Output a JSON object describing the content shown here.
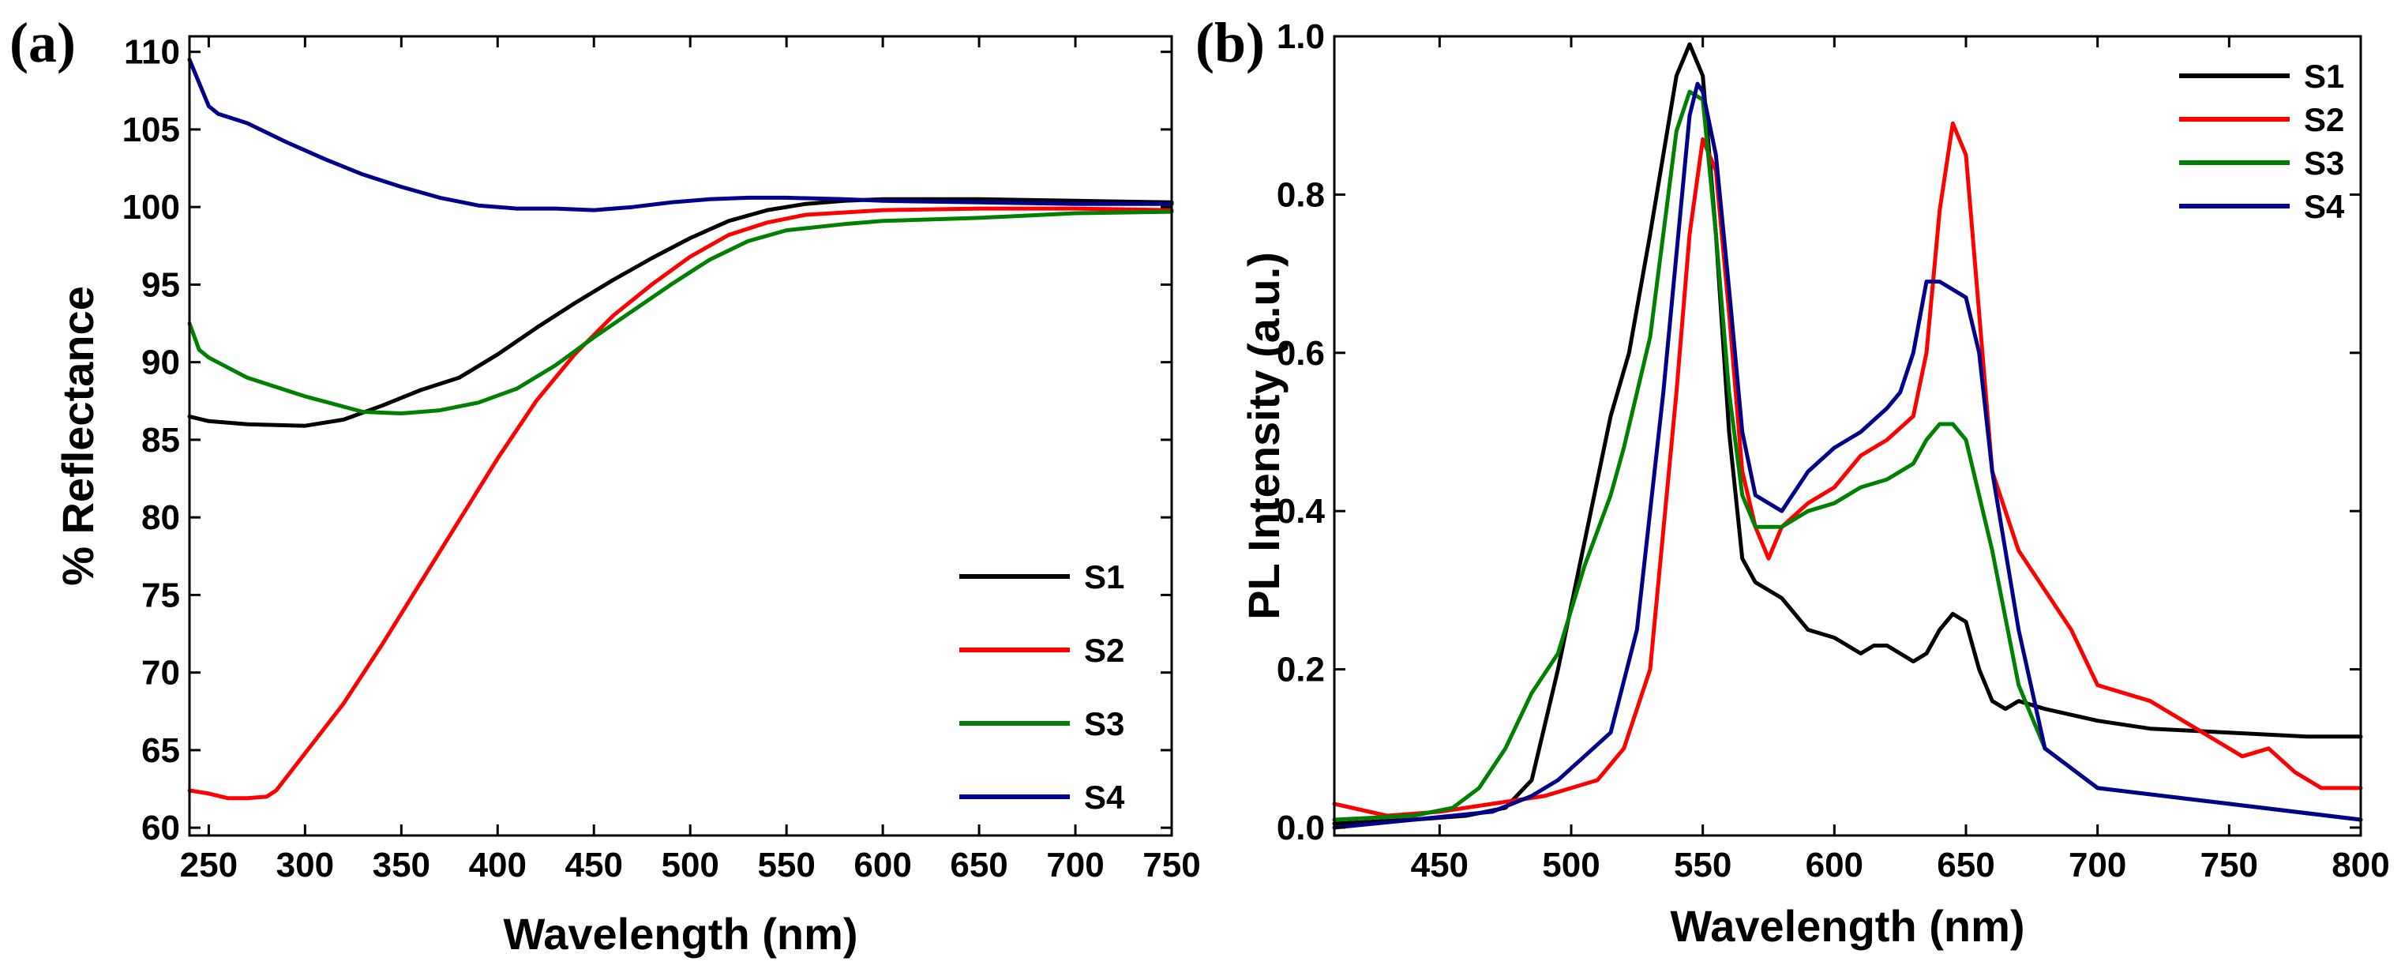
{
  "chart_data": [
    {
      "panel": "(a)",
      "type": "line",
      "xlabel": "Wavelength (nm)",
      "ylabel": "% Reflectance",
      "xlim": [
        240,
        750
      ],
      "ylim": [
        59.5,
        111
      ],
      "xticks": [
        250,
        300,
        350,
        400,
        450,
        500,
        550,
        600,
        650,
        700,
        750
      ],
      "yticks": [
        60,
        65,
        70,
        75,
        80,
        85,
        90,
        95,
        100,
        105,
        110
      ],
      "legend_position": "bottom-right",
      "series": [
        {
          "name": "S1",
          "color": "#000000",
          "x": [
            240,
            250,
            270,
            300,
            320,
            340,
            360,
            380,
            400,
            420,
            440,
            460,
            480,
            500,
            520,
            540,
            560,
            580,
            600,
            650,
            700,
            750
          ],
          "y": [
            86.5,
            86.2,
            86.0,
            85.9,
            86.3,
            87.2,
            88.2,
            89.0,
            90.5,
            92.2,
            93.8,
            95.3,
            96.7,
            98.0,
            99.1,
            99.8,
            100.2,
            100.4,
            100.5,
            100.5,
            100.4,
            100.3
          ]
        },
        {
          "name": "S2",
          "color": "#ff0000",
          "x": [
            240,
            250,
            260,
            270,
            280,
            285,
            300,
            320,
            340,
            360,
            380,
            400,
            420,
            440,
            460,
            480,
            500,
            520,
            540,
            560,
            600,
            650,
            700,
            750
          ],
          "y": [
            62.4,
            62.2,
            61.9,
            61.9,
            62.0,
            62.4,
            64.8,
            68.0,
            71.8,
            75.8,
            79.8,
            83.8,
            87.5,
            90.5,
            93.0,
            95.0,
            96.8,
            98.2,
            99.0,
            99.5,
            99.8,
            99.9,
            99.9,
            99.8
          ]
        },
        {
          "name": "S3",
          "color": "#008000",
          "x": [
            240,
            245,
            250,
            270,
            300,
            330,
            350,
            370,
            390,
            410,
            430,
            450,
            470,
            490,
            510,
            530,
            550,
            580,
            600,
            650,
            700,
            750
          ],
          "y": [
            92.5,
            90.8,
            90.3,
            89.0,
            87.8,
            86.8,
            86.7,
            86.9,
            87.4,
            88.3,
            89.8,
            91.6,
            93.3,
            95.0,
            96.6,
            97.8,
            98.5,
            98.9,
            99.1,
            99.3,
            99.6,
            99.7
          ]
        },
        {
          "name": "S4",
          "color": "#00008b",
          "x": [
            240,
            245,
            250,
            255,
            270,
            290,
            310,
            330,
            350,
            370,
            390,
            410,
            430,
            450,
            470,
            490,
            510,
            530,
            550,
            580,
            600,
            650,
            700,
            750
          ],
          "y": [
            109.5,
            108.0,
            106.5,
            106.0,
            105.4,
            104.2,
            103.1,
            102.1,
            101.3,
            100.6,
            100.1,
            99.9,
            99.9,
            99.8,
            100.0,
            100.3,
            100.5,
            100.6,
            100.6,
            100.5,
            100.4,
            100.3,
            100.2,
            100.2
          ]
        }
      ]
    },
    {
      "panel": "(b)",
      "type": "line",
      "xlabel": "Wavelength (nm)",
      "ylabel": "PL Intensity (a.u.)",
      "xlim": [
        410,
        800
      ],
      "ylim": [
        -0.01,
        1.0
      ],
      "xticks": [
        450,
        500,
        550,
        600,
        650,
        700,
        750,
        800
      ],
      "yticks": [
        0.0,
        0.2,
        0.4,
        0.6,
        0.8,
        1.0
      ],
      "ytick_labels": [
        "0.0",
        "0.2",
        "0.4",
        "0.6",
        "0.8",
        "1.0"
      ],
      "legend_position": "top-right",
      "series": [
        {
          "name": "S1",
          "color": "#000000",
          "x": [
            410,
            440,
            460,
            475,
            485,
            495,
            505,
            515,
            522,
            530,
            540,
            545,
            550,
            555,
            560,
            565,
            570,
            575,
            580,
            585,
            590,
            600,
            610,
            615,
            620,
            625,
            630,
            635,
            640,
            645,
            650,
            655,
            660,
            665,
            670,
            680,
            700,
            720,
            750,
            780,
            800
          ],
          "y": [
            0.005,
            0.01,
            0.015,
            0.025,
            0.06,
            0.2,
            0.36,
            0.52,
            0.6,
            0.75,
            0.95,
            0.99,
            0.95,
            0.75,
            0.5,
            0.34,
            0.31,
            0.3,
            0.29,
            0.27,
            0.25,
            0.24,
            0.22,
            0.23,
            0.23,
            0.22,
            0.21,
            0.22,
            0.25,
            0.27,
            0.26,
            0.2,
            0.16,
            0.15,
            0.16,
            0.15,
            0.135,
            0.125,
            0.12,
            0.115,
            0.115
          ]
        },
        {
          "name": "S2",
          "color": "#ff0000",
          "x": [
            410,
            430,
            450,
            470,
            490,
            500,
            510,
            520,
            530,
            540,
            545,
            550,
            555,
            560,
            565,
            570,
            575,
            580,
            590,
            600,
            610,
            620,
            630,
            635,
            640,
            645,
            650,
            655,
            660,
            670,
            680,
            690,
            700,
            720,
            740,
            755,
            765,
            775,
            785,
            800
          ],
          "y": [
            0.03,
            0.015,
            0.02,
            0.03,
            0.04,
            0.05,
            0.06,
            0.1,
            0.2,
            0.55,
            0.75,
            0.87,
            0.83,
            0.65,
            0.45,
            0.38,
            0.34,
            0.38,
            0.41,
            0.43,
            0.47,
            0.49,
            0.52,
            0.6,
            0.78,
            0.89,
            0.85,
            0.65,
            0.45,
            0.35,
            0.3,
            0.25,
            0.18,
            0.16,
            0.12,
            0.09,
            0.1,
            0.07,
            0.05,
            0.05
          ]
        },
        {
          "name": "S3",
          "color": "#008000",
          "x": [
            410,
            440,
            455,
            465,
            475,
            485,
            495,
            505,
            515,
            520,
            530,
            540,
            545,
            550,
            555,
            560,
            565,
            570,
            580,
            590,
            600,
            610,
            620,
            630,
            635,
            640,
            645,
            650,
            660,
            670,
            680,
            700,
            750,
            800
          ],
          "y": [
            0.01,
            0.015,
            0.025,
            0.05,
            0.1,
            0.17,
            0.22,
            0.33,
            0.42,
            0.48,
            0.62,
            0.88,
            0.93,
            0.92,
            0.75,
            0.55,
            0.42,
            0.38,
            0.38,
            0.4,
            0.41,
            0.43,
            0.44,
            0.46,
            0.49,
            0.51,
            0.51,
            0.49,
            0.35,
            0.18,
            0.1,
            0.05,
            0.03,
            0.01
          ]
        },
        {
          "name": "S4",
          "color": "#00008b",
          "x": [
            410,
            440,
            470,
            485,
            495,
            505,
            515,
            525,
            535,
            545,
            548,
            550,
            555,
            560,
            565,
            570,
            580,
            590,
            600,
            610,
            620,
            625,
            630,
            635,
            640,
            645,
            650,
            655,
            660,
            670,
            680,
            700,
            750,
            800
          ],
          "y": [
            0.0,
            0.01,
            0.02,
            0.04,
            0.06,
            0.09,
            0.12,
            0.25,
            0.55,
            0.9,
            0.94,
            0.93,
            0.85,
            0.68,
            0.5,
            0.42,
            0.4,
            0.45,
            0.48,
            0.5,
            0.53,
            0.55,
            0.6,
            0.69,
            0.69,
            0.68,
            0.67,
            0.6,
            0.45,
            0.25,
            0.1,
            0.05,
            0.03,
            0.01
          ]
        }
      ]
    }
  ]
}
